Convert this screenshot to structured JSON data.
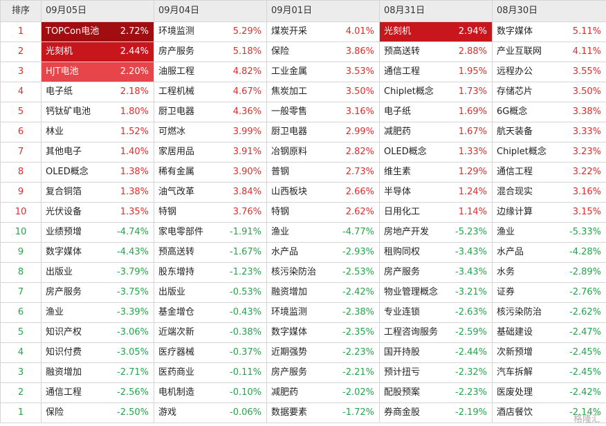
{
  "header": {
    "rank_label": "排序",
    "dates": [
      "09月05日",
      "09月04日",
      "09月01日",
      "08月31日",
      "08月30日"
    ]
  },
  "rows": [
    {
      "rank": "1",
      "cells": [
        {
          "name": "TOPCon电池",
          "pct": "2.72%",
          "hl": 1
        },
        {
          "name": "环境监测",
          "pct": "5.29%"
        },
        {
          "name": "煤炭开采",
          "pct": "4.01%"
        },
        {
          "name": "光刻机",
          "pct": "2.94%",
          "hl": 2
        },
        {
          "name": "数字媒体",
          "pct": "5.11%"
        }
      ]
    },
    {
      "rank": "2",
      "cells": [
        {
          "name": "光刻机",
          "pct": "2.44%",
          "hl": 2
        },
        {
          "name": "房产服务",
          "pct": "5.18%"
        },
        {
          "name": "保险",
          "pct": "3.86%"
        },
        {
          "name": "预高送转",
          "pct": "2.88%"
        },
        {
          "name": "产业互联网",
          "pct": "4.11%"
        }
      ]
    },
    {
      "rank": "3",
      "cells": [
        {
          "name": "HJT电池",
          "pct": "2.20%",
          "hl": 3
        },
        {
          "name": "油服工程",
          "pct": "4.82%"
        },
        {
          "name": "工业金属",
          "pct": "3.53%"
        },
        {
          "name": "通信工程",
          "pct": "1.95%"
        },
        {
          "name": "远程办公",
          "pct": "3.55%"
        }
      ]
    },
    {
      "rank": "4",
      "cells": [
        {
          "name": "电子纸",
          "pct": "2.18%"
        },
        {
          "name": "工程机械",
          "pct": "4.67%"
        },
        {
          "name": "焦炭加工",
          "pct": "3.50%"
        },
        {
          "name": "Chiplet概念",
          "pct": "1.73%"
        },
        {
          "name": "存储芯片",
          "pct": "3.50%"
        }
      ]
    },
    {
      "rank": "5",
      "cells": [
        {
          "name": "钙钛矿电池",
          "pct": "1.80%"
        },
        {
          "name": "厨卫电器",
          "pct": "4.36%"
        },
        {
          "name": "一般零售",
          "pct": "3.16%"
        },
        {
          "name": "电子纸",
          "pct": "1.69%"
        },
        {
          "name": "6G概念",
          "pct": "3.38%"
        }
      ]
    },
    {
      "rank": "6",
      "cells": [
        {
          "name": "林业",
          "pct": "1.52%"
        },
        {
          "name": "可燃冰",
          "pct": "3.99%"
        },
        {
          "name": "厨卫电器",
          "pct": "2.99%"
        },
        {
          "name": "减肥药",
          "pct": "1.67%"
        },
        {
          "name": "航天装备",
          "pct": "3.33%"
        }
      ]
    },
    {
      "rank": "7",
      "cells": [
        {
          "name": "其他电子",
          "pct": "1.40%"
        },
        {
          "name": "家居用品",
          "pct": "3.91%"
        },
        {
          "name": "冶钢原料",
          "pct": "2.82%"
        },
        {
          "name": "OLED概念",
          "pct": "1.33%"
        },
        {
          "name": "Chiplet概念",
          "pct": "3.23%"
        }
      ]
    },
    {
      "rank": "8",
      "cells": [
        {
          "name": "OLED概念",
          "pct": "1.38%"
        },
        {
          "name": "稀有金属",
          "pct": "3.90%"
        },
        {
          "name": "普钢",
          "pct": "2.73%"
        },
        {
          "name": "维生素",
          "pct": "1.29%"
        },
        {
          "name": "通信工程",
          "pct": "3.22%"
        }
      ]
    },
    {
      "rank": "9",
      "cells": [
        {
          "name": "复合铜箔",
          "pct": "1.38%"
        },
        {
          "name": "油气改革",
          "pct": "3.84%"
        },
        {
          "name": "山西板块",
          "pct": "2.66%"
        },
        {
          "name": "半导体",
          "pct": "1.24%"
        },
        {
          "name": "混合现实",
          "pct": "3.16%"
        }
      ]
    },
    {
      "rank": "10",
      "cells": [
        {
          "name": "光伏设备",
          "pct": "1.35%"
        },
        {
          "name": "特钢",
          "pct": "3.76%"
        },
        {
          "name": "特钢",
          "pct": "2.62%"
        },
        {
          "name": "日用化工",
          "pct": "1.14%"
        },
        {
          "name": "边缘计算",
          "pct": "3.15%"
        }
      ]
    },
    {
      "rank": "10",
      "cells": [
        {
          "name": "业绩预增",
          "pct": "-4.74%"
        },
        {
          "name": "家电零部件",
          "pct": "-1.91%"
        },
        {
          "name": "渔业",
          "pct": "-4.77%"
        },
        {
          "name": "房地产开发",
          "pct": "-5.23%"
        },
        {
          "name": "渔业",
          "pct": "-5.33%"
        }
      ]
    },
    {
      "rank": "9",
      "cells": [
        {
          "name": "数字媒体",
          "pct": "-4.43%"
        },
        {
          "name": "预高送转",
          "pct": "-1.67%"
        },
        {
          "name": "水产品",
          "pct": "-2.93%"
        },
        {
          "name": "租购同权",
          "pct": "-3.43%"
        },
        {
          "name": "水产品",
          "pct": "-4.28%"
        }
      ]
    },
    {
      "rank": "8",
      "cells": [
        {
          "name": "出版业",
          "pct": "-3.79%"
        },
        {
          "name": "股东增持",
          "pct": "-1.23%"
        },
        {
          "name": "核污染防治",
          "pct": "-2.53%"
        },
        {
          "name": "房产服务",
          "pct": "-3.43%"
        },
        {
          "name": "水务",
          "pct": "-2.89%"
        }
      ]
    },
    {
      "rank": "7",
      "cells": [
        {
          "name": "房产服务",
          "pct": "-3.75%"
        },
        {
          "name": "出版业",
          "pct": "-0.53%"
        },
        {
          "name": "融资增加",
          "pct": "-2.42%"
        },
        {
          "name": "物业管理概念",
          "pct": "-3.21%"
        },
        {
          "name": "证券",
          "pct": "-2.76%"
        }
      ]
    },
    {
      "rank": "6",
      "cells": [
        {
          "name": "渔业",
          "pct": "-3.39%"
        },
        {
          "name": "基金增仓",
          "pct": "-0.43%"
        },
        {
          "name": "环境监测",
          "pct": "-2.38%"
        },
        {
          "name": "专业连锁",
          "pct": "-2.63%"
        },
        {
          "name": "核污染防治",
          "pct": "-2.62%"
        }
      ]
    },
    {
      "rank": "5",
      "cells": [
        {
          "name": "知识产权",
          "pct": "-3.06%"
        },
        {
          "name": "近端次新",
          "pct": "-0.38%"
        },
        {
          "name": "数字媒体",
          "pct": "-2.35%"
        },
        {
          "name": "工程咨询服务",
          "pct": "-2.59%"
        },
        {
          "name": "基础建设",
          "pct": "-2.47%"
        }
      ]
    },
    {
      "rank": "4",
      "cells": [
        {
          "name": "知识付费",
          "pct": "-3.05%"
        },
        {
          "name": "医疗器械",
          "pct": "-0.37%"
        },
        {
          "name": "近期强势",
          "pct": "-2.23%"
        },
        {
          "name": "国开持股",
          "pct": "-2.44%"
        },
        {
          "name": "次新预增",
          "pct": "-2.45%"
        }
      ]
    },
    {
      "rank": "3",
      "cells": [
        {
          "name": "融资增加",
          "pct": "-2.71%"
        },
        {
          "name": "医药商业",
          "pct": "-0.11%"
        },
        {
          "name": "房产服务",
          "pct": "-2.21%"
        },
        {
          "name": "预计扭亏",
          "pct": "-2.32%"
        },
        {
          "name": "汽车拆解",
          "pct": "-2.45%"
        }
      ]
    },
    {
      "rank": "2",
      "cells": [
        {
          "name": "通信工程",
          "pct": "-2.56%"
        },
        {
          "name": "电机制造",
          "pct": "-0.10%"
        },
        {
          "name": "减肥药",
          "pct": "-2.02%"
        },
        {
          "name": "配股预案",
          "pct": "-2.23%"
        },
        {
          "name": "医废处理",
          "pct": "-2.42%"
        }
      ]
    },
    {
      "rank": "1",
      "cells": [
        {
          "name": "保险",
          "pct": "-2.50%"
        },
        {
          "name": "游戏",
          "pct": "-0.06%"
        },
        {
          "name": "数据要素",
          "pct": "-1.72%"
        },
        {
          "name": "券商金股",
          "pct": "-2.19%"
        },
        {
          "name": "酒店餐饮",
          "pct": "-2.14%"
        }
      ]
    }
  ],
  "watermark": "格隆汇",
  "colors": {
    "up": "#e02c2c",
    "down": "#25a448",
    "highlight_dark": "#a00e12",
    "highlight_mid": "#c8161d",
    "highlight_light": "#e8454a",
    "header_bg": "#ececec",
    "border": "#d4d4d4"
  }
}
